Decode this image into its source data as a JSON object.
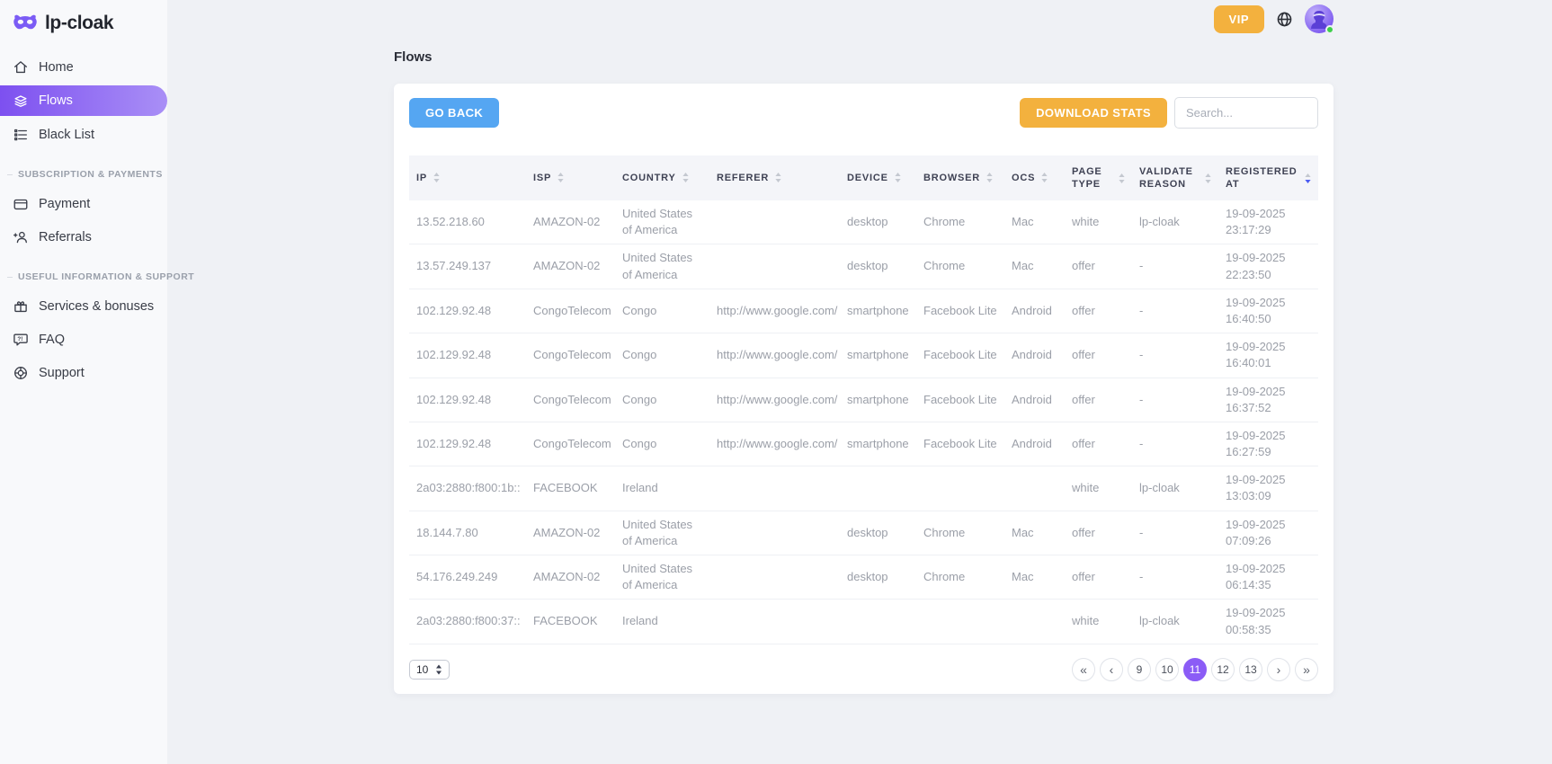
{
  "brand": {
    "name": "lp-cloak"
  },
  "topbar": {
    "vip_label": "VIP"
  },
  "sidebar": {
    "main_items": [
      {
        "label": "Home",
        "active": false
      },
      {
        "label": "Flows",
        "active": true
      },
      {
        "label": "Black List",
        "active": false
      }
    ],
    "sections": [
      {
        "title": "SUBSCRIPTION & PAYMENTS",
        "items": [
          {
            "label": "Payment"
          },
          {
            "label": "Referrals"
          }
        ]
      },
      {
        "title": "USEFUL INFORMATION & SUPPORT",
        "items": [
          {
            "label": "Services & bonuses"
          },
          {
            "label": "FAQ"
          },
          {
            "label": "Support"
          }
        ]
      }
    ]
  },
  "page": {
    "title": "Flows"
  },
  "toolbar": {
    "go_back_label": "GO BACK",
    "download_stats_label": "DOWNLOAD STATS",
    "search_placeholder": "Search..."
  },
  "table": {
    "columns": [
      {
        "key": "ip",
        "label": "IP"
      },
      {
        "key": "isp",
        "label": "ISP"
      },
      {
        "key": "country",
        "label": "COUNTRY"
      },
      {
        "key": "referer",
        "label": "REFERER"
      },
      {
        "key": "device",
        "label": "DEVICE"
      },
      {
        "key": "browser",
        "label": "BROWSER"
      },
      {
        "key": "ocs",
        "label": "OCS"
      },
      {
        "key": "page_type",
        "label": "PAGE TYPE"
      },
      {
        "key": "validate_reason",
        "label": "VALIDATE REASON"
      },
      {
        "key": "registered_at",
        "label": "REGISTERED AT"
      }
    ],
    "sort": {
      "column": "registered_at",
      "direction": "desc"
    },
    "rows": [
      [
        "13.52.218.60",
        "AMAZON-02",
        "United States of America",
        "",
        "desktop",
        "Chrome",
        "Mac",
        "white",
        "lp-cloak",
        "19-09-2025 23:17:29"
      ],
      [
        "13.57.249.137",
        "AMAZON-02",
        "United States of America",
        "",
        "desktop",
        "Chrome",
        "Mac",
        "offer",
        "-",
        "19-09-2025 22:23:50"
      ],
      [
        "102.129.92.48",
        "CongoTelecom",
        "Congo",
        "http://www.google.com/",
        "smartphone",
        "Facebook Lite",
        "Android",
        "offer",
        "-",
        "19-09-2025 16:40:50"
      ],
      [
        "102.129.92.48",
        "CongoTelecom",
        "Congo",
        "http://www.google.com/",
        "smartphone",
        "Facebook Lite",
        "Android",
        "offer",
        "-",
        "19-09-2025 16:40:01"
      ],
      [
        "102.129.92.48",
        "CongoTelecom",
        "Congo",
        "http://www.google.com/",
        "smartphone",
        "Facebook Lite",
        "Android",
        "offer",
        "-",
        "19-09-2025 16:37:52"
      ],
      [
        "102.129.92.48",
        "CongoTelecom",
        "Congo",
        "http://www.google.com/",
        "smartphone",
        "Facebook Lite",
        "Android",
        "offer",
        "-",
        "19-09-2025 16:27:59"
      ],
      [
        "2a03:2880:f800:1b::",
        "FACEBOOK",
        "Ireland",
        "",
        "",
        "",
        "",
        "white",
        "lp-cloak",
        "19-09-2025 13:03:09"
      ],
      [
        "18.144.7.80",
        "AMAZON-02",
        "United States of America",
        "",
        "desktop",
        "Chrome",
        "Mac",
        "offer",
        "-",
        "19-09-2025 07:09:26"
      ],
      [
        "54.176.249.249",
        "AMAZON-02",
        "United States of America",
        "",
        "desktop",
        "Chrome",
        "Mac",
        "offer",
        "-",
        "19-09-2025 06:14:35"
      ],
      [
        "2a03:2880:f800:37::",
        "FACEBOOK",
        "Ireland",
        "",
        "",
        "",
        "",
        "white",
        "lp-cloak",
        "19-09-2025 00:58:35"
      ]
    ]
  },
  "pagination": {
    "page_size": "10",
    "first_label": "«",
    "prev_label": "‹",
    "next_label": "›",
    "last_label": "»",
    "pages": [
      "9",
      "10",
      "11",
      "12",
      "13"
    ],
    "active_page": "11"
  },
  "colors": {
    "accent_purple": "#8b5cf6",
    "sidebar_gradient_start": "#7d50f0",
    "sidebar_gradient_end": "#a98ff6",
    "blue_button": "#55a6f2",
    "orange_button": "#f3b13e",
    "active_sort_arrow": "#4a5bf2",
    "status_green": "#3ecf4a"
  }
}
